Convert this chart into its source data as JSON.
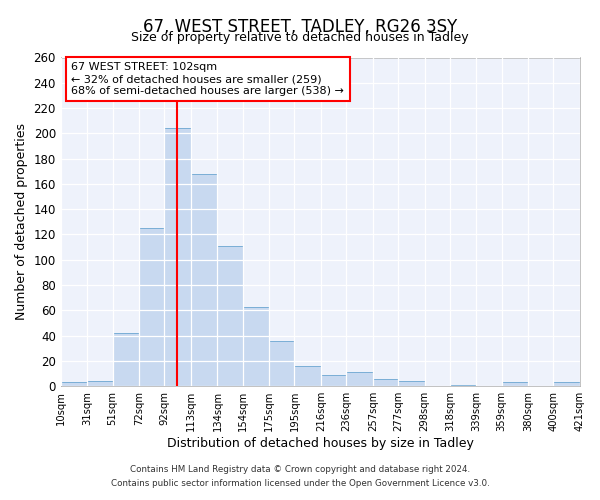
{
  "title": "67, WEST STREET, TADLEY, RG26 3SY",
  "subtitle": "Size of property relative to detached houses in Tadley",
  "xlabel": "Distribution of detached houses by size in Tadley",
  "ylabel": "Number of detached properties",
  "bar_color": "#c8d9f0",
  "bar_edge_color": "#7aaed6",
  "background_color": "#eef2fb",
  "plot_bg_color": "#eef2fb",
  "grid_color": "#ffffff",
  "bins": [
    10,
    31,
    51,
    72,
    92,
    113,
    134,
    154,
    175,
    195,
    216,
    236,
    257,
    277,
    298,
    318,
    339,
    359,
    380,
    400,
    421
  ],
  "values": [
    3,
    4,
    42,
    125,
    204,
    168,
    111,
    63,
    36,
    16,
    9,
    11,
    6,
    4,
    0,
    1,
    0,
    3,
    0,
    3
  ],
  "tick_labels": [
    "10sqm",
    "31sqm",
    "51sqm",
    "72sqm",
    "92sqm",
    "113sqm",
    "134sqm",
    "154sqm",
    "175sqm",
    "195sqm",
    "216sqm",
    "236sqm",
    "257sqm",
    "277sqm",
    "298sqm",
    "318sqm",
    "339sqm",
    "359sqm",
    "380sqm",
    "400sqm",
    "421sqm"
  ],
  "red_line_x": 102,
  "ylim": [
    0,
    260
  ],
  "yticks": [
    0,
    20,
    40,
    60,
    80,
    100,
    120,
    140,
    160,
    180,
    200,
    220,
    240,
    260
  ],
  "annotation_title": "67 WEST STREET: 102sqm",
  "annotation_line1": "← 32% of detached houses are smaller (259)",
  "annotation_line2": "68% of semi-detached houses are larger (538) →",
  "footer1": "Contains HM Land Registry data © Crown copyright and database right 2024.",
  "footer2": "Contains public sector information licensed under the Open Government Licence v3.0."
}
